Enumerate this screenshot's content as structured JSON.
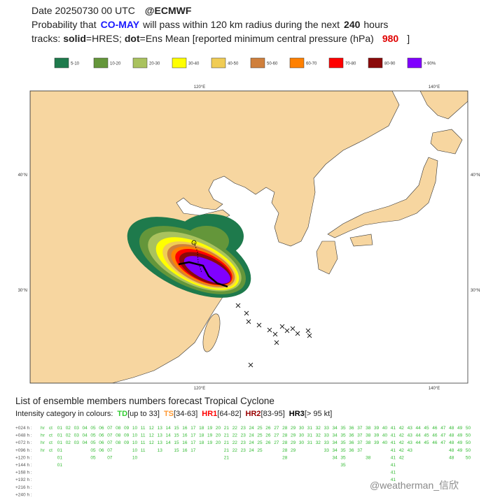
{
  "header": {
    "date": "Date 20250730 00 UTC",
    "source": "@ECMWF",
    "line2": {
      "prefix": "Probability that",
      "storm": "CO-MAY",
      "mid": "will pass within 120 km radius during the next",
      "hours": "240",
      "suffix": "hours"
    },
    "line3": {
      "prefix": "tracks:",
      "solid": "solid",
      "solid_desc": "=HRES;",
      "dot": "dot",
      "dot_desc": "=Ens Mean [reported minimum central pressure (hPa)",
      "pressure": "980",
      "end": "]"
    }
  },
  "legend": [
    {
      "label": "5-10",
      "color": "#1e7a4c"
    },
    {
      "label": "10-20",
      "color": "#64963a"
    },
    {
      "label": "20-30",
      "color": "#a9c25e"
    },
    {
      "label": "30-40",
      "color": "#ffff00"
    },
    {
      "label": "40-50",
      "color": "#f0cc55"
    },
    {
      "label": "50-60",
      "color": "#cf7f3c"
    },
    {
      "label": "60-70",
      "color": "#ff8000"
    },
    {
      "label": "70-80",
      "color": "#ff0000"
    },
    {
      "label": "80-90",
      "color": "#8b0a0a"
    },
    {
      "label": "> 90%",
      "color": "#8000ff"
    }
  ],
  "map": {
    "lon_labels": [
      "120°E",
      "140°E"
    ],
    "lat_labels": [
      "40°N",
      "30°N"
    ]
  },
  "members": {
    "title": "List of ensemble members numbers forecast Tropical Cyclone",
    "intensity": {
      "prefix": "Intensity category in colours:",
      "categories": [
        {
          "code": "TD",
          "range": "[up to 33]",
          "color": "#33cc33"
        },
        {
          "code": "TS",
          "range": "[34-63]",
          "color": "#ff9933"
        },
        {
          "code": "HR1",
          "range": "[64-82]",
          "color": "#ff0000"
        },
        {
          "code": "HR2",
          "range": "[83-95]",
          "color": "#990000"
        },
        {
          "code": "HR3",
          "range": "[> 95 kt]",
          "color": "#000000"
        }
      ]
    },
    "rows": [
      {
        "label": "+024 h :",
        "members": [
          "hr",
          "ct",
          "01",
          "02",
          "03",
          "04",
          "05",
          "06",
          "07",
          "08",
          "09",
          "10",
          "11",
          "12",
          "13",
          "14",
          "15",
          "16",
          "17",
          "18",
          "19",
          "20",
          "21",
          "22",
          "23",
          "24",
          "25",
          "26",
          "27",
          "28",
          "29",
          "30",
          "31",
          "32",
          "33",
          "34",
          "35",
          "36",
          "37",
          "38",
          "39",
          "40",
          "41",
          "42",
          "43",
          "44",
          "45",
          "46",
          "47",
          "48",
          "49",
          "50"
        ]
      },
      {
        "label": "+048 h :",
        "members": [
          "hr",
          "ct",
          "01",
          "02",
          "03",
          "04",
          "05",
          "06",
          "07",
          "08",
          "09",
          "10",
          "11",
          "12",
          "13",
          "14",
          "15",
          "16",
          "17",
          "18",
          "19",
          "20",
          "21",
          "22",
          "23",
          "24",
          "25",
          "26",
          "27",
          "28",
          "29",
          "30",
          "31",
          "32",
          "33",
          "34",
          "35",
          "36",
          "37",
          "38",
          "39",
          "40",
          "41",
          "42",
          "43",
          "44",
          "45",
          "46",
          "47",
          "48",
          "49",
          "50"
        ]
      },
      {
        "label": "+072 h :",
        "members": [
          "hr",
          "ct",
          "01",
          "02",
          "03",
          "04",
          "05",
          "06",
          "07",
          "08",
          "09",
          "10",
          "11",
          "12",
          "13",
          "14",
          "15",
          "16",
          "17",
          "18",
          "19",
          "20",
          "21",
          "22",
          "23",
          "24",
          "25",
          "26",
          "27",
          "28",
          "29",
          "30",
          "31",
          "32",
          "33",
          "34",
          "35",
          "36",
          "37",
          "38",
          "39",
          "40",
          "41",
          "42",
          "43",
          "44",
          "45",
          "46",
          "47",
          "48",
          "49",
          "50"
        ]
      },
      {
        "label": "+096 h :",
        "members": [
          "hr",
          "ct",
          "01",
          "05",
          "06",
          "07",
          "10",
          "11",
          "13",
          "15",
          "16",
          "17",
          "21",
          "22",
          "23",
          "24",
          "25",
          "28",
          "29",
          "33",
          "34",
          "35",
          "36",
          "37",
          "41",
          "42",
          "43",
          "48",
          "49",
          "50"
        ]
      },
      {
        "label": "+120 h :",
        "members": [
          "01",
          "05",
          "07",
          "10",
          "21",
          "28",
          "34",
          "35",
          "38",
          "41",
          "42",
          "48",
          "50"
        ]
      },
      {
        "label": "+144 h :",
        "members": [
          "01",
          "35",
          "41"
        ]
      },
      {
        "label": "+168 h :",
        "members": [
          "41"
        ]
      },
      {
        "label": "+192 h :",
        "members": [
          "41"
        ]
      },
      {
        "label": "+216 h :",
        "members": []
      },
      {
        "label": "+240 h :",
        "members": []
      }
    ]
  },
  "watermark": "@weatherman_信欣"
}
